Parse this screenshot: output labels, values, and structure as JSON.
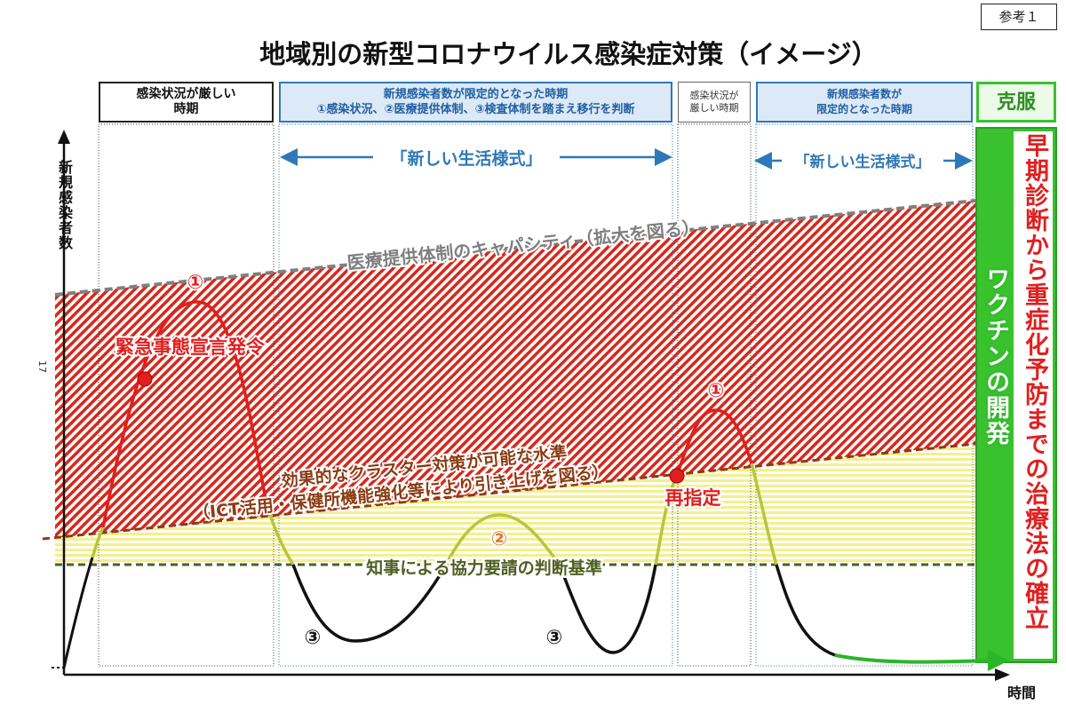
{
  "reference_label": "参考１",
  "title": "地域別の新型コロナウイルス感染症対策（イメージ）",
  "phases": {
    "p1": {
      "line1": "感染状況が厳しい",
      "line2": "時期"
    },
    "p2": {
      "line1": "新規感染者数が限定的となった時期",
      "line2": "①感染状況、②医療提供体制、③検査体制を踏まえ移行を判断"
    },
    "p3": {
      "line1": "感染状況が",
      "line2": "厳しい時期"
    },
    "p4": {
      "line1": "新規感染者数が",
      "line2": "限定的となった時期"
    },
    "p5": {
      "label": "克服"
    }
  },
  "new_lifestyle_label": "「新しい生活様式」",
  "axes": {
    "y_label": "新規感染者数",
    "x_label": "時間",
    "side_number": "17"
  },
  "lines": {
    "capacity": "医療提供体制のキャパシティ（拡大を図る）",
    "cluster_line1": "効果的なクラスター対策が可能な水準",
    "cluster_line2": "（ICT活用・保健所機能強化等により引き上げを図る）",
    "governor": "知事による協力要請の判断基準"
  },
  "markers": {
    "emergency": "緊急事態宣言発令",
    "redesignation": "再指定",
    "m1": "①",
    "m2": "②",
    "m3": "③"
  },
  "right_panel": {
    "vaccine": "ワクチンの開発",
    "treatment": "早期診断から重症化予防までの治療法の確立"
  },
  "colors": {
    "red": "#e01f1f",
    "hatch": "#d9271b",
    "yellow": "#f4f08a",
    "blue": "#2f78b7",
    "green": "#39c12e",
    "grey_line": "#7f7f7f",
    "cluster_line": "#8a3b12",
    "governor_line": "#4f5f22"
  }
}
